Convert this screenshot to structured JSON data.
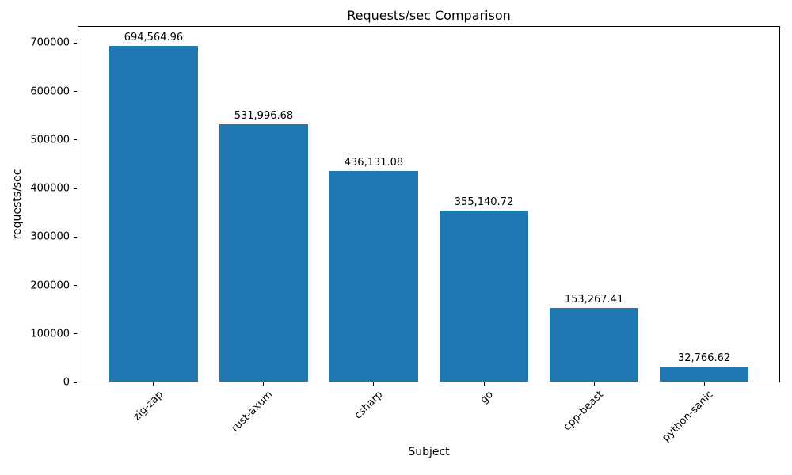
{
  "chart_data": {
    "type": "bar",
    "title": "Requests/sec Comparison",
    "xlabel": "Subject",
    "ylabel": "requests/sec",
    "categories": [
      "zig-zap",
      "rust-axum",
      "csharp",
      "go",
      "cpp-beast",
      "python-sanic"
    ],
    "values": [
      694564.96,
      531996.68,
      436131.08,
      355140.72,
      153267.41,
      32766.62
    ],
    "value_labels": [
      "694,564.96",
      "531,996.68",
      "436,131.08",
      "355,140.72",
      "153,267.41",
      "32,766.62"
    ],
    "series": [
      {
        "name": "requests/sec",
        "values": [
          694564.96,
          531996.68,
          436131.08,
          355140.72,
          153267.41,
          32766.62
        ]
      }
    ],
    "bar_color": "#1f77b4",
    "axis_color": "#000000",
    "background_color": "#ffffff",
    "yticks": [
      0,
      100000,
      200000,
      300000,
      400000,
      500000,
      600000,
      700000
    ],
    "ytick_labels": [
      "0",
      "100000",
      "200000",
      "300000",
      "400000",
      "500000",
      "600000",
      "700000"
    ],
    "ylim": [
      0,
      735000
    ],
    "grid": false,
    "legend": null
  }
}
